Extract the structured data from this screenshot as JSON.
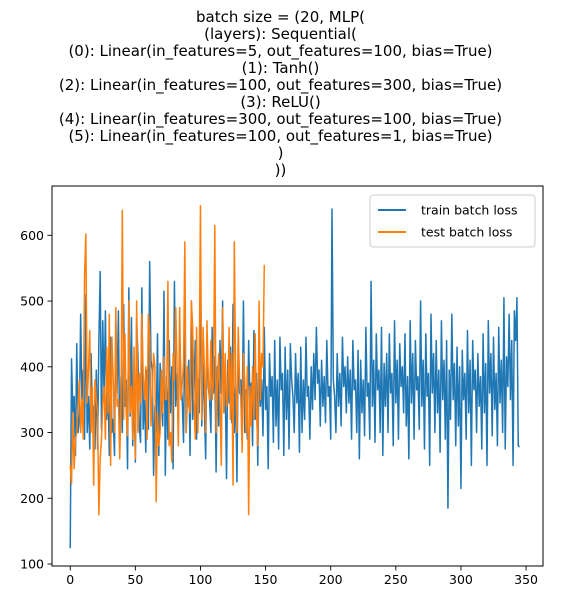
{
  "chart_data": {
    "type": "line",
    "title_lines": [
      "batch size = (20, MLP(",
      "(layers): Sequential(",
      "(0): Linear(in_features=5, out_features=100, bias=True)",
      "(1): Tanh()",
      "(2): Linear(in_features=100, out_features=300, bias=True)",
      "(3): ReLU()",
      "(4): Linear(in_features=300, out_features=100, bias=True)",
      "(5): Linear(in_features=100, out_features=1, bias=True)",
      ")",
      "))"
    ],
    "xlabel": "",
    "ylabel": "",
    "xlim": [
      -14,
      363
    ],
    "ylim": [
      97,
      675
    ],
    "xticks": [
      0,
      50,
      100,
      150,
      200,
      250,
      300,
      350
    ],
    "yticks": [
      100,
      200,
      300,
      400,
      500,
      600
    ],
    "grid": false,
    "legend_position": "upper-right",
    "series": [
      {
        "name": "train batch loss",
        "color": "#1f77b4",
        "values": [
          124,
          412,
          330,
          355,
          265,
          435,
          300,
          320,
          480,
          350,
          395,
          290,
          510,
          300,
          355,
          275,
          420,
          330,
          340,
          275,
          395,
          275,
          440,
          545,
          305,
          470,
          350,
          485,
          320,
          370,
          265,
          445,
          300,
          320,
          265,
          470,
          360,
          485,
          275,
          385,
          300,
          495,
          340,
          380,
          245,
          520,
          325,
          475,
          280,
          365,
          255,
          470,
          415,
          310,
          285,
          520,
          305,
          360,
          270,
          395,
          305,
          560,
          410,
          395,
          235,
          340,
          300,
          450,
          265,
          405,
          360,
          310,
          515,
          235,
          385,
          290,
          440,
          330,
          400,
          245,
          530,
          340,
          390,
          305,
          450,
          380,
          350,
          285,
          475,
          300,
          360,
          410,
          265,
          500,
          320,
          360,
          440,
          290,
          380,
          330,
          570,
          310,
          405,
          335,
          260,
          450,
          370,
          350,
          300,
          460,
          360,
          415,
          240,
          400,
          310,
          440,
          360,
          500,
          330,
          370,
          230,
          410,
          345,
          430,
          315,
          495,
          300,
          370,
          225,
          440,
          360,
          380,
          320,
          500,
          300,
          365,
          290,
          440,
          350,
          375,
          280,
          455,
          320,
          390,
          250,
          410,
          340,
          380,
          295,
          460,
          335,
          370,
          245,
          420,
          355,
          385,
          285,
          440,
          310,
          380,
          275,
          445,
          365,
          390,
          265,
          430,
          320,
          395,
          275,
          435,
          380,
          355,
          300,
          420,
          345,
          390,
          270,
          430,
          300,
          380,
          320,
          445,
          355,
          370,
          290,
          400,
          335,
          420,
          350,
          460,
          375,
          395,
          310,
          410,
          340,
          385,
          315,
          440,
          355,
          370,
          290,
          640,
          380,
          355,
          300,
          420,
          340,
          390,
          310,
          445,
          370,
          400,
          330,
          415,
          345,
          395,
          290,
          440,
          365,
          380,
          300,
          425,
          260,
          410,
          330,
          380,
          295,
          460,
          355,
          375,
          290,
          530,
          340,
          410,
          285,
          450,
          365,
          395,
          300,
          460,
          265,
          405,
          340,
          420,
          300,
          450,
          360,
          390,
          280,
          470,
          345,
          410,
          290,
          435,
          370,
          400,
          330,
          450,
          310,
          385,
          260,
          470,
          345,
          420,
          290,
          440,
          365,
          385,
          305,
          500,
          340,
          410,
          275,
          450,
          355,
          390,
          250,
          480,
          360,
          420,
          300,
          440,
          330,
          395,
          270,
          470,
          350,
          410,
          290,
          440,
          185,
          395,
          320,
          480,
          350,
          405,
          280,
          430,
          310,
          400,
          215,
          425,
          350,
          390,
          290,
          455,
          330,
          410,
          250,
          440,
          365,
          395,
          300,
          420,
          340,
          385,
          275,
          450,
          330,
          405,
          250,
          470,
          360,
          420,
          295,
          445,
          335,
          390,
          280,
          460,
          345,
          410,
          300,
          505,
          275,
          415,
          370,
          480,
          350,
          440,
          250,
          485,
          440,
          505,
          280,
          278
        ]
      },
      {
        "name": "test batch loss",
        "color": "#ff7f0e",
        "values": [
          250,
          222,
          330,
          245,
          290,
          300,
          340,
          380,
          300,
          350,
          290,
          540,
          602,
          345,
          395,
          455,
          300,
          370,
          220,
          380,
          350,
          330,
          175,
          260,
          290,
          345,
          370,
          290,
          430,
          330,
          480,
          250,
          445,
          380,
          300,
          490,
          340,
          350,
          260,
          350,
          638,
          320,
          450,
          330,
          295,
          500,
          330,
          370,
          290,
          430,
          260,
          500,
          300,
          390,
          345,
          480,
          385,
          350,
          400,
          290,
          480,
          450,
          310,
          360,
          420,
          400,
          195,
          330,
          280,
          300,
          395,
          330,
          415,
          350,
          350,
          530,
          280,
          300,
          255,
          420,
          380,
          490,
          400,
          280,
          490,
          350,
          375,
          405,
          590,
          300,
          400,
          340,
          330,
          500,
          460,
          350,
          290,
          460,
          300,
          400,
          645,
          320,
          460,
          400,
          300,
          470,
          380,
          350,
          440,
          350,
          380,
          615,
          300,
          380,
          420,
          350,
          250,
          490,
          330,
          420,
          340,
          360,
          460,
          320,
          420,
          220,
          590,
          380,
          300,
          460,
          380,
          350,
          270,
          420,
          380,
          300,
          400,
          175,
          370,
          310,
          400,
          320,
          450,
          330,
          280,
          500,
          350,
          420,
          400,
          555
        ]
      }
    ]
  }
}
